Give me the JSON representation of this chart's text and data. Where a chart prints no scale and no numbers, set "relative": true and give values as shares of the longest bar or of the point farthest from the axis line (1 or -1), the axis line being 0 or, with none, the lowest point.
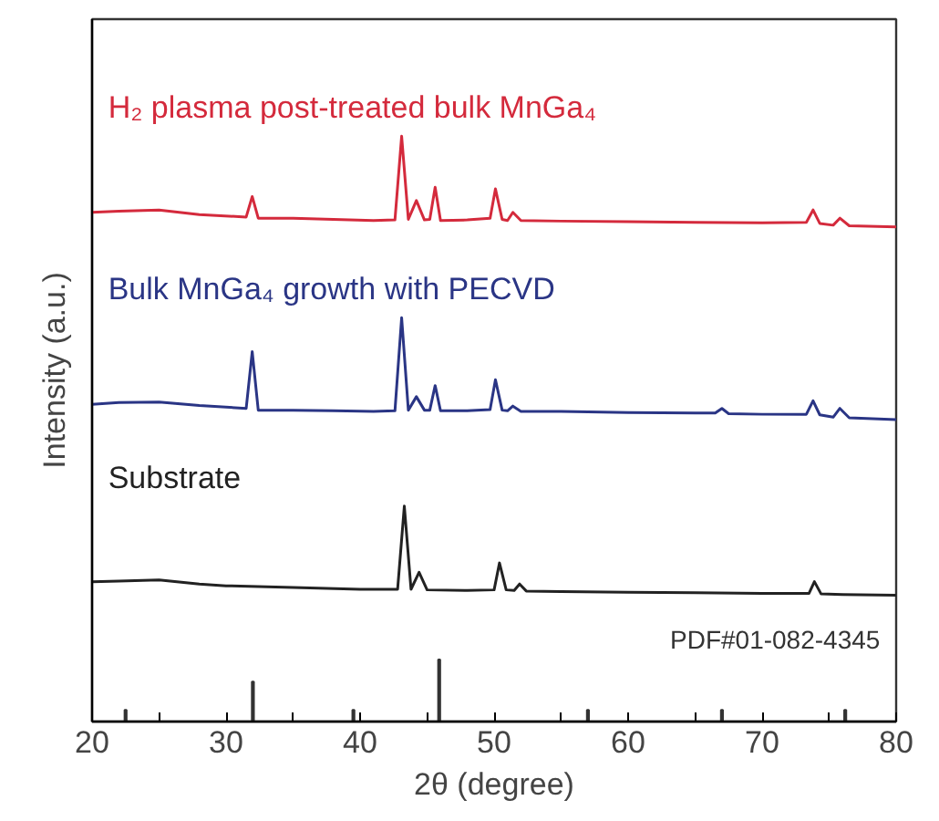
{
  "chart_data": {
    "type": "line",
    "relative": true,
    "xlabel": "2θ (degree)",
    "ylabel": "Intensity (a.u.)",
    "xlim": [
      20,
      80
    ],
    "xticks": [
      20,
      {
        "value": 25,
        "label": null
      },
      30,
      {
        "value": 35,
        "label": null
      },
      40,
      {
        "value": 45,
        "label": null
      },
      50,
      {
        "value": 55,
        "label": null
      },
      60,
      {
        "value": 65,
        "label": null
      },
      70,
      {
        "value": 75,
        "label": null
      },
      80
    ],
    "grid": false,
    "tick_labels": "x",
    "series": [
      {
        "name": "H₂ plasma post-treated bulk MnGa₄",
        "color": "#d42a3c",
        "x": [
          20,
          22,
          25,
          28,
          31.5,
          31.95,
          32.4,
          35,
          38,
          41,
          42.6,
          43.1,
          43.6,
          44.2,
          44.8,
          45.2,
          45.6,
          46,
          48,
          49.7,
          50.1,
          50.6,
          51.0,
          51.4,
          52,
          55,
          60,
          65,
          70,
          73.3,
          73.8,
          74.3,
          75.3,
          75.8,
          76.5,
          80
        ],
        "values": [
          0.87,
          0.872,
          0.874,
          0.866,
          0.862,
          0.897,
          0.86,
          0.86,
          0.858,
          0.856,
          0.857,
          1.0,
          0.858,
          0.89,
          0.857,
          0.858,
          0.913,
          0.856,
          0.857,
          0.86,
          0.91,
          0.858,
          0.856,
          0.87,
          0.856,
          0.855,
          0.854,
          0.853,
          0.852,
          0.853,
          0.874,
          0.851,
          0.848,
          0.86,
          0.847,
          0.845
        ]
      },
      {
        "name": "Bulk MnGa₄ growth with PECVD",
        "color": "#2a3585",
        "x": [
          20,
          22,
          25,
          28,
          31.5,
          31.95,
          32.4,
          35,
          38,
          41,
          42.6,
          43.1,
          43.6,
          44.2,
          44.8,
          45.2,
          45.6,
          46,
          48,
          49.7,
          50.1,
          50.6,
          51.0,
          51.4,
          52,
          55,
          60,
          65,
          66.5,
          67,
          67.5,
          70,
          73.3,
          73.8,
          74.3,
          75.3,
          75.8,
          76.5,
          80
        ],
        "values": [
          0.542,
          0.545,
          0.546,
          0.54,
          0.535,
          0.632,
          0.532,
          0.532,
          0.531,
          0.53,
          0.531,
          0.69,
          0.532,
          0.555,
          0.532,
          0.532,
          0.574,
          0.531,
          0.531,
          0.533,
          0.584,
          0.532,
          0.531,
          0.539,
          0.53,
          0.53,
          0.528,
          0.527,
          0.527,
          0.535,
          0.526,
          0.525,
          0.525,
          0.548,
          0.524,
          0.52,
          0.535,
          0.519,
          0.516
        ]
      },
      {
        "name": "Substrate",
        "color": "#222222",
        "x": [
          20,
          22,
          25,
          28,
          30,
          35,
          40,
          42.8,
          43.3,
          43.8,
          44.4,
          45,
          48,
          50,
          50.4,
          50.9,
          51.5,
          51.9,
          52.4,
          55,
          60,
          65,
          70,
          73.5,
          73.9,
          74.4,
          76,
          80
        ],
        "values": [
          0.239,
          0.24,
          0.242,
          0.235,
          0.232,
          0.229,
          0.226,
          0.226,
          0.368,
          0.226,
          0.255,
          0.225,
          0.224,
          0.225,
          0.271,
          0.225,
          0.224,
          0.235,
          0.223,
          0.222,
          0.221,
          0.22,
          0.219,
          0.219,
          0.239,
          0.218,
          0.217,
          0.216
        ]
      },
      {
        "name": "PDF#01-082-4345",
        "type": "bar",
        "color": "#333333",
        "x": [
          22.5,
          32.0,
          39.5,
          45.9,
          57,
          67,
          76.2
        ],
        "values": [
          0.02,
          0.068,
          0.02,
          0.106,
          0.02,
          0.02,
          0.02
        ]
      }
    ]
  }
}
